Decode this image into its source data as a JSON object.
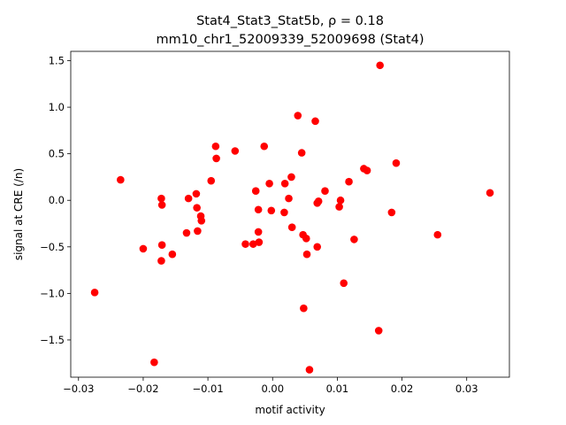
{
  "chart_data": {
    "type": "scatter",
    "title_line1": "Stat4_Stat3_Stat5b, ρ = 0.18",
    "title_line2": "mm10_chr1_52009339_52009698 (Stat4)",
    "xlabel": "motif activity",
    "ylabel": "signal at CRE (/n)",
    "xlim": [
      -0.0312,
      0.0366
    ],
    "ylim": [
      -1.9,
      1.6
    ],
    "xticks": [
      -0.03,
      -0.02,
      -0.01,
      0.0,
      0.01,
      0.02,
      0.03
    ],
    "xtick_labels": [
      "−0.03",
      "−0.02",
      "−0.01",
      "0.00",
      "0.01",
      "0.02",
      "0.03"
    ],
    "yticks": [
      -1.5,
      -1.0,
      -0.5,
      0.0,
      0.5,
      1.0,
      1.5
    ],
    "ytick_labels": [
      "−1.5",
      "−1.0",
      "−0.5",
      "0.0",
      "0.5",
      "1.0",
      "1.5"
    ],
    "grid": false,
    "legend": "none",
    "marker_color": "#ff0000",
    "points": [
      [
        -0.0275,
        -0.99
      ],
      [
        -0.0235,
        0.22
      ],
      [
        -0.02,
        -0.52
      ],
      [
        -0.0183,
        -1.74
      ],
      [
        -0.0172,
        0.02
      ],
      [
        -0.0171,
        -0.05
      ],
      [
        -0.0171,
        -0.48
      ],
      [
        -0.0172,
        -0.65
      ],
      [
        -0.0155,
        -0.58
      ],
      [
        -0.0133,
        -0.35
      ],
      [
        -0.013,
        0.02
      ],
      [
        -0.0118,
        0.07
      ],
      [
        -0.0117,
        -0.08
      ],
      [
        -0.0116,
        -0.33
      ],
      [
        -0.0111,
        -0.17
      ],
      [
        -0.011,
        -0.22
      ],
      [
        -0.0095,
        0.21
      ],
      [
        -0.0088,
        0.58
      ],
      [
        -0.0087,
        0.45
      ],
      [
        -0.0058,
        0.53
      ],
      [
        -0.0042,
        -0.47
      ],
      [
        -0.003,
        -0.47
      ],
      [
        -0.0026,
        0.1
      ],
      [
        -0.0022,
        -0.34
      ],
      [
        -0.0022,
        -0.1
      ],
      [
        -0.0021,
        -0.45
      ],
      [
        -0.0013,
        0.58
      ],
      [
        -0.0005,
        0.18
      ],
      [
        -0.0002,
        -0.11
      ],
      [
        0.0018,
        -0.13
      ],
      [
        0.0019,
        0.18
      ],
      [
        0.0025,
        0.02
      ],
      [
        0.0029,
        0.25
      ],
      [
        0.003,
        -0.29
      ],
      [
        0.0039,
        0.91
      ],
      [
        0.0045,
        0.51
      ],
      [
        0.0047,
        -0.37
      ],
      [
        0.0048,
        -1.16
      ],
      [
        0.0052,
        -0.41
      ],
      [
        0.0053,
        -0.58
      ],
      [
        0.0057,
        -1.82
      ],
      [
        0.0066,
        0.85
      ],
      [
        0.0069,
        -0.5
      ],
      [
        0.0069,
        -0.03
      ],
      [
        0.0071,
        -0.01
      ],
      [
        0.0081,
        0.1
      ],
      [
        0.0103,
        -0.07
      ],
      [
        0.0105,
        0.0
      ],
      [
        0.011,
        -0.89
      ],
      [
        0.0118,
        0.2
      ],
      [
        0.0126,
        -0.42
      ],
      [
        0.0141,
        0.34
      ],
      [
        0.0146,
        0.32
      ],
      [
        0.0164,
        -1.4
      ],
      [
        0.0166,
        1.45
      ],
      [
        0.0184,
        -0.13
      ],
      [
        0.0191,
        0.4
      ],
      [
        0.0255,
        -0.37
      ],
      [
        0.0336,
        0.08
      ]
    ]
  }
}
